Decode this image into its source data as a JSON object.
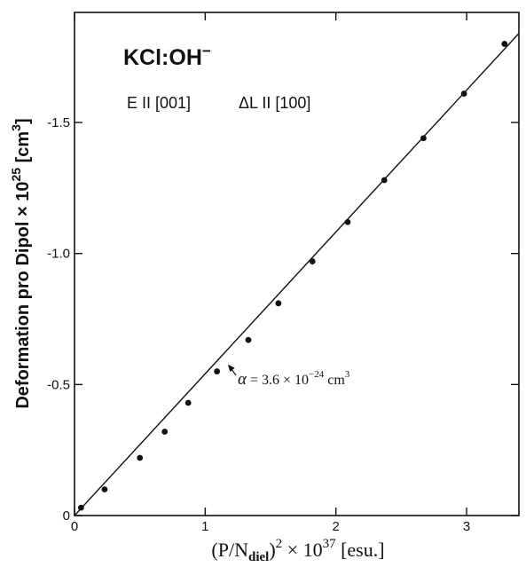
{
  "chart_data": {
    "type": "scatter",
    "title": "KCl:OH",
    "title_superscript": "−",
    "subtitle_left": "E II [001]",
    "subtitle_right": "ΔL II [100]",
    "ylabel": "Deformation pro Dipol × 10",
    "ylabel_exp": "25",
    "ylabel_unit": " [cm",
    "ylabel_unit_exp": "3",
    "ylabel_close": "]",
    "xlabel_main": "(P/N",
    "xlabel_sub": "diel",
    "xlabel_mid": ")",
    "xlabel_exp1": "2",
    "xlabel_times": " × 10",
    "xlabel_exp2": "37",
    "xlabel_unit": " [esu.]",
    "xlim": [
      0,
      3.4
    ],
    "ylim": [
      0,
      -1.92
    ],
    "x_ticks": [
      0,
      1,
      2,
      3
    ],
    "x_tick_labels": [
      "0",
      "1",
      "2",
      "3"
    ],
    "y_ticks": [
      0,
      -0.5,
      -1.0,
      -1.5
    ],
    "y_tick_labels": [
      "0",
      "-0.5",
      "-1.0",
      "-1.5"
    ],
    "grid": false,
    "points": [
      {
        "x": 0.05,
        "y": -0.03
      },
      {
        "x": 0.23,
        "y": -0.1
      },
      {
        "x": 0.5,
        "y": -0.22
      },
      {
        "x": 0.69,
        "y": -0.32
      },
      {
        "x": 0.87,
        "y": -0.43
      },
      {
        "x": 1.09,
        "y": -0.55
      },
      {
        "x": 1.33,
        "y": -0.67
      },
      {
        "x": 1.56,
        "y": -0.81
      },
      {
        "x": 1.82,
        "y": -0.97
      },
      {
        "x": 2.09,
        "y": -1.12
      },
      {
        "x": 2.37,
        "y": -1.28
      },
      {
        "x": 2.67,
        "y": -1.44
      },
      {
        "x": 2.98,
        "y": -1.61
      },
      {
        "x": 3.29,
        "y": -1.8
      }
    ],
    "fit_line": {
      "x": [
        0,
        3.4
      ],
      "y": [
        0.0,
        -1.84
      ]
    },
    "annotation": {
      "at": {
        "x": 1.16,
        "y": -0.58
      },
      "text_alpha": "α",
      "text_main": " = 3.6 × 10",
      "text_exp": "−24",
      "text_unit": " cm",
      "text_unit_exp": "3"
    }
  }
}
